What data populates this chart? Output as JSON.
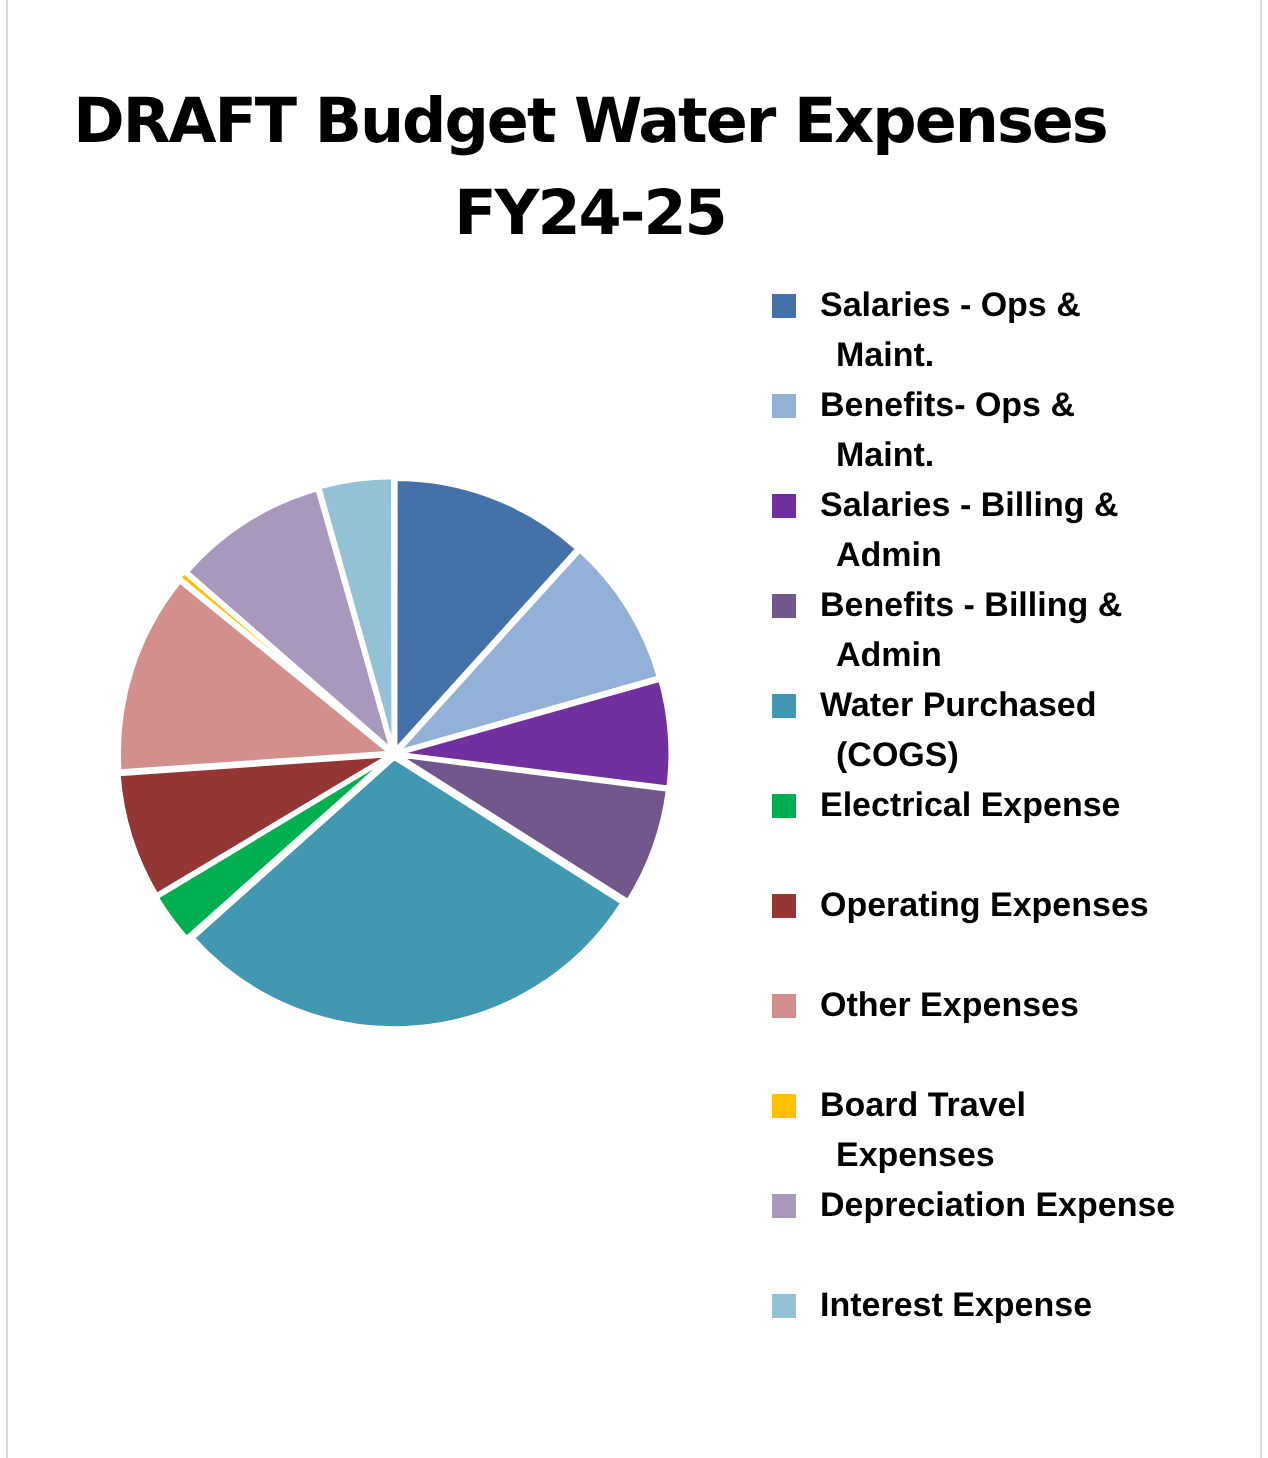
{
  "chart_data": {
    "type": "pie",
    "title": "DRAFT Budget Water Expenses FY24-25",
    "categories": [
      "Salaries - Ops & Maint.",
      "Benefits- Ops & Maint.",
      "Salaries - Billing & Admin",
      "Benefits - Billing & Admin",
      "Water Purchased (COGS)",
      "Electrical Expense",
      "Operating Expenses",
      "Other Expenses",
      "Board Travel Expenses",
      "Depreciation Expense",
      "Interest Expense"
    ],
    "values": [
      11.7,
      8.9,
      6.4,
      7,
      29.4,
      3,
      7.5,
      12,
      0.5,
      9.2,
      4.4
    ],
    "colors": [
      "#4472a8",
      "#93b1d6",
      "#7030a0",
      "#72578d",
      "#4298b0",
      "#00b050",
      "#943634",
      "#d38f8c",
      "#ffc000",
      "#a898bd",
      "#92c2d4"
    ],
    "legend": "right"
  }
}
